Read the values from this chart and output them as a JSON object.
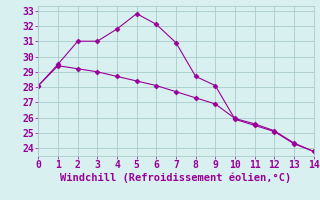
{
  "line1_x": [
    0,
    1,
    2,
    3,
    4,
    5,
    6,
    7,
    8,
    9,
    10,
    11,
    12,
    13,
    14
  ],
  "line1_y": [
    28.1,
    29.5,
    31.0,
    31.0,
    31.8,
    32.8,
    32.1,
    30.9,
    28.7,
    28.1,
    25.9,
    25.5,
    25.1,
    24.3,
    23.8
  ],
  "line2_x": [
    0,
    1,
    2,
    3,
    4,
    5,
    6,
    7,
    8,
    9,
    10,
    11,
    12,
    13,
    14
  ],
  "line2_y": [
    28.1,
    29.4,
    29.2,
    29.0,
    28.7,
    28.4,
    28.1,
    27.7,
    27.3,
    26.9,
    25.95,
    25.6,
    25.15,
    24.35,
    23.8
  ],
  "line_color": "#990099",
  "marker": "D",
  "marker_size": 2.5,
  "xlabel": "Windchill (Refroidissement éolien,°C)",
  "xlim": [
    0,
    14
  ],
  "ylim": [
    23.5,
    33.3
  ],
  "xticks": [
    0,
    1,
    2,
    3,
    4,
    5,
    6,
    7,
    8,
    9,
    10,
    11,
    12,
    13,
    14
  ],
  "yticks": [
    24,
    25,
    26,
    27,
    28,
    29,
    30,
    31,
    32,
    33
  ],
  "bg_color": "#d8f0f0",
  "grid_color": "#aacccc",
  "font_color": "#990099",
  "tick_fontsize": 7.0,
  "label_fontsize": 7.5
}
